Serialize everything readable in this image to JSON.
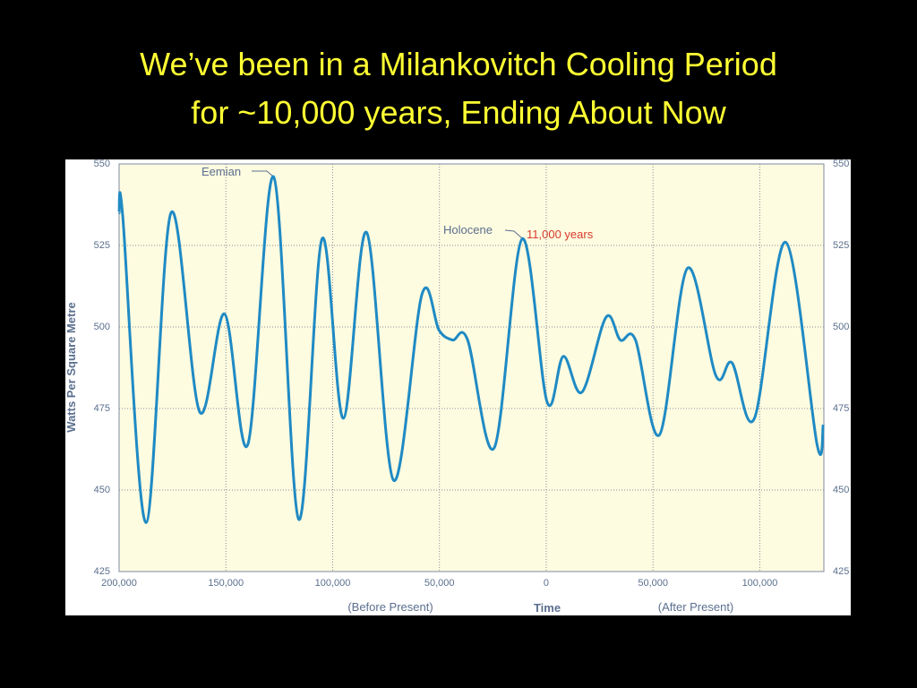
{
  "chart_data": {
    "type": "line",
    "title": [
      "We’ve been in a Milankovitch Cooling Period",
      "for ~10,000 years, Ending About Now"
    ],
    "y_label": "Watts Per Square Metre",
    "x_label": "Time",
    "x_sublabels": [
      "(Before Present)",
      "(After Present)"
    ],
    "annotations": [
      "Eemian",
      "Holocene",
      "11,000 years"
    ],
    "xlim": [
      -200000,
      130000
    ],
    "xticks": [
      {
        "value": -200000,
        "label": "200,000"
      },
      {
        "value": -150000,
        "label": "150,000"
      },
      {
        "value": -100000,
        "label": "100,000"
      },
      {
        "value": -50000,
        "label": "50,000"
      },
      0,
      {
        "value": 50000,
        "label": "50,000"
      },
      {
        "value": 100000,
        "label": "100,000"
      }
    ],
    "ylim": [
      425,
      550
    ],
    "yticks": [
      425,
      450,
      475,
      500,
      525,
      550
    ],
    "grid": true,
    "series": [
      {
        "color": "#1f8ac4",
        "x": [
          -200000,
          -198300,
          -187400,
          -175700,
          -162300,
          -150600,
          -139700,
          -127600,
          -115900,
          -105000,
          -95000,
          -84100,
          -71500,
          -58200,
          -50200,
          -43900,
          -36800,
          -24300,
          -11300,
          400,
          8000,
          16700,
          28000,
          34700,
          41800,
          53100,
          66100,
          79500,
          87000,
          97500,
          112100,
          126800,
          129700
        ],
        "values": [
          535,
          534,
          440,
          535,
          474,
          504,
          464,
          546,
          441,
          527,
          472,
          529,
          453,
          510,
          499,
          496,
          496,
          463,
          527,
          477,
          491,
          480,
          503,
          496,
          496,
          467,
          518,
          485,
          489,
          472,
          526,
          464,
          470
        ]
      }
    ]
  }
}
